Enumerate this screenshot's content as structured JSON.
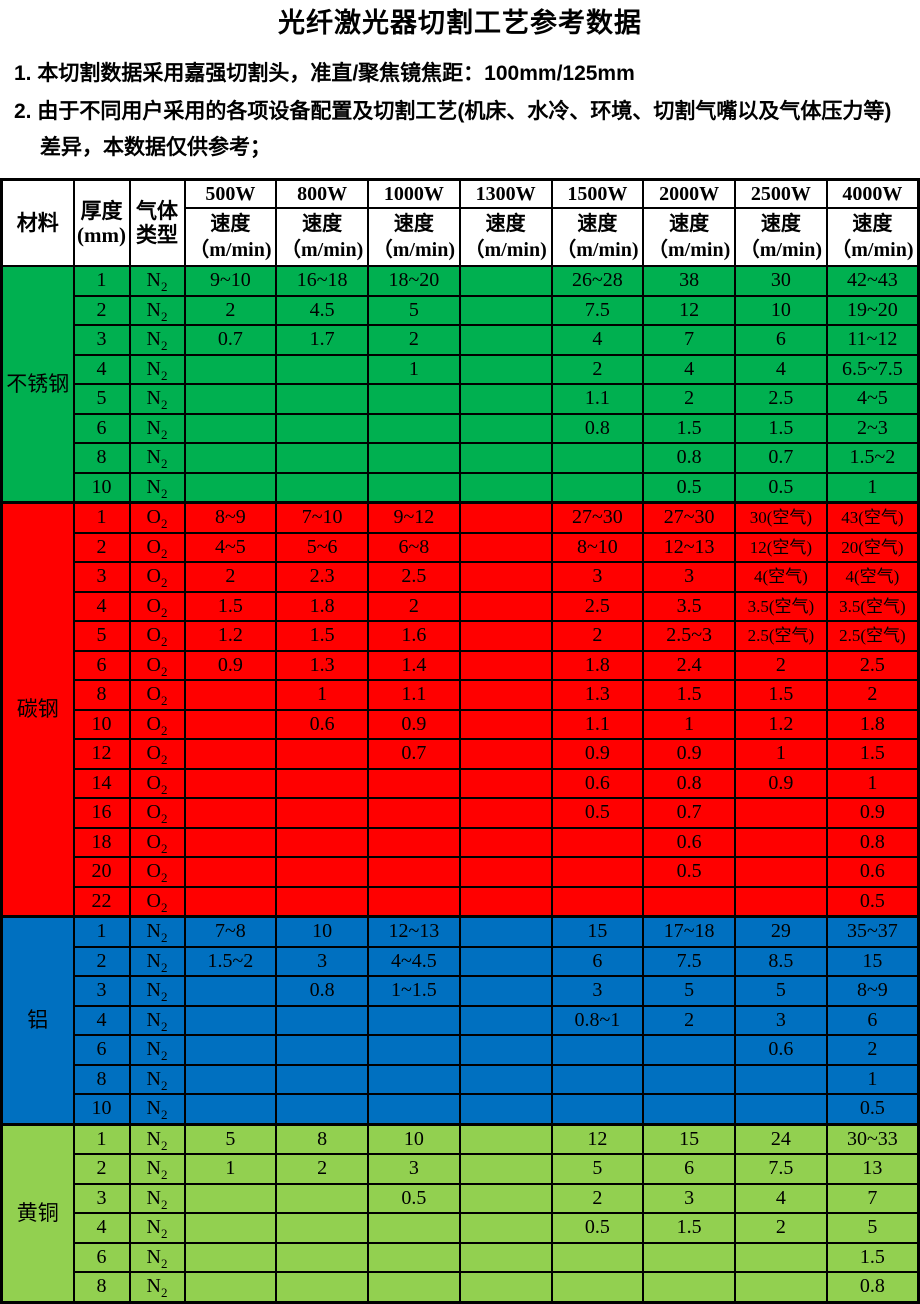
{
  "title": "光纤激光器切割工艺参考数据",
  "notes": [
    "1. 本切割数据采用嘉强切割头，准直/聚焦镜焦距：100mm/125mm",
    "2. 由于不同用户采用的各项设备配置及切割工艺(机床、水冷、环境、切割气嘴以及气体压力等)差异，本数据仅供参考；"
  ],
  "table": {
    "header": {
      "material": "材料",
      "thickness_line1": "厚度",
      "thickness_line2": "(mm)",
      "gas_line1": "气体",
      "gas_line2": "类型",
      "powers": [
        "500W",
        "800W",
        "1000W",
        "1300W",
        "1500W",
        "2000W",
        "2500W",
        "4000W"
      ],
      "speed_label": "速度",
      "speed_unit": "（m/min)"
    },
    "colors": {
      "stainless": "#00B050",
      "carbon": "#FF0000",
      "aluminum": "#0070C0",
      "brass": "#92D050"
    },
    "sections": [
      {
        "material": "不锈钢",
        "color_key": "stainless",
        "rows": [
          {
            "thickness": "1",
            "gas": "N2",
            "speeds": [
              "9~10",
              "16~18",
              "18~20",
              "",
              "26~28",
              "38",
              "30",
              "42~43"
            ]
          },
          {
            "thickness": "2",
            "gas": "N2",
            "speeds": [
              "2",
              "4.5",
              "5",
              "",
              "7.5",
              "12",
              "10",
              "19~20"
            ]
          },
          {
            "thickness": "3",
            "gas": "N2",
            "speeds": [
              "0.7",
              "1.7",
              "2",
              "",
              "4",
              "7",
              "6",
              "11~12"
            ]
          },
          {
            "thickness": "4",
            "gas": "N2",
            "speeds": [
              "",
              "",
              "1",
              "",
              "2",
              "4",
              "4",
              "6.5~7.5"
            ]
          },
          {
            "thickness": "5",
            "gas": "N2",
            "speeds": [
              "",
              "",
              "",
              "",
              "1.1",
              "2",
              "2.5",
              "4~5"
            ]
          },
          {
            "thickness": "6",
            "gas": "N2",
            "speeds": [
              "",
              "",
              "",
              "",
              "0.8",
              "1.5",
              "1.5",
              "2~3"
            ]
          },
          {
            "thickness": "8",
            "gas": "N2",
            "speeds": [
              "",
              "",
              "",
              "",
              "",
              "0.8",
              "0.7",
              "1.5~2"
            ]
          },
          {
            "thickness": "10",
            "gas": "N2",
            "speeds": [
              "",
              "",
              "",
              "",
              "",
              "0.5",
              "0.5",
              "1"
            ]
          }
        ]
      },
      {
        "material": "碳钢",
        "color_key": "carbon",
        "rows": [
          {
            "thickness": "1",
            "gas": "O2",
            "speeds": [
              "8~9",
              "7~10",
              "9~12",
              "",
              "27~30",
              "27~30",
              "30(空气)",
              "43(空气)"
            ]
          },
          {
            "thickness": "2",
            "gas": "O2",
            "speeds": [
              "4~5",
              "5~6",
              "6~8",
              "",
              "8~10",
              "12~13",
              "12(空气)",
              "20(空气)"
            ]
          },
          {
            "thickness": "3",
            "gas": "O2",
            "speeds": [
              "2",
              "2.3",
              "2.5",
              "",
              "3",
              "3",
              "4(空气)",
              "4(空气)"
            ]
          },
          {
            "thickness": "4",
            "gas": "O2",
            "speeds": [
              "1.5",
              "1.8",
              "2",
              "",
              "2.5",
              "3.5",
              "3.5(空气)",
              "3.5(空气)"
            ]
          },
          {
            "thickness": "5",
            "gas": "O2",
            "speeds": [
              "1.2",
              "1.5",
              "1.6",
              "",
              "2",
              "2.5~3",
              "2.5(空气)",
              "2.5(空气)"
            ]
          },
          {
            "thickness": "6",
            "gas": "O2",
            "speeds": [
              "0.9",
              "1.3",
              "1.4",
              "",
              "1.8",
              "2.4",
              "2",
              "2.5"
            ]
          },
          {
            "thickness": "8",
            "gas": "O2",
            "speeds": [
              "",
              "1",
              "1.1",
              "",
              "1.3",
              "1.5",
              "1.5",
              "2"
            ]
          },
          {
            "thickness": "10",
            "gas": "O2",
            "speeds": [
              "",
              "0.6",
              "0.9",
              "",
              "1.1",
              "1",
              "1.2",
              "1.8"
            ]
          },
          {
            "thickness": "12",
            "gas": "O2",
            "speeds": [
              "",
              "",
              "0.7",
              "",
              "0.9",
              "0.9",
              "1",
              "1.5"
            ]
          },
          {
            "thickness": "14",
            "gas": "O2",
            "speeds": [
              "",
              "",
              "",
              "",
              "0.6",
              "0.8",
              "0.9",
              "1"
            ]
          },
          {
            "thickness": "16",
            "gas": "O2",
            "speeds": [
              "",
              "",
              "",
              "",
              "0.5",
              "0.7",
              "",
              "0.9"
            ]
          },
          {
            "thickness": "18",
            "gas": "O2",
            "speeds": [
              "",
              "",
              "",
              "",
              "",
              "0.6",
              "",
              "0.8"
            ]
          },
          {
            "thickness": "20",
            "gas": "O2",
            "speeds": [
              "",
              "",
              "",
              "",
              "",
              "0.5",
              "",
              "0.6"
            ]
          },
          {
            "thickness": "22",
            "gas": "O2",
            "speeds": [
              "",
              "",
              "",
              "",
              "",
              "",
              "",
              "0.5"
            ]
          }
        ]
      },
      {
        "material": "铝",
        "color_key": "aluminum",
        "rows": [
          {
            "thickness": "1",
            "gas": "N2",
            "speeds": [
              "7~8",
              "10",
              "12~13",
              "",
              "15",
              "17~18",
              "29",
              "35~37"
            ]
          },
          {
            "thickness": "2",
            "gas": "N2",
            "speeds": [
              "1.5~2",
              "3",
              "4~4.5",
              "",
              "6",
              "7.5",
              "8.5",
              "15"
            ]
          },
          {
            "thickness": "3",
            "gas": "N2",
            "speeds": [
              "",
              "0.8",
              "1~1.5",
              "",
              "3",
              "5",
              "5",
              "8~9"
            ]
          },
          {
            "thickness": "4",
            "gas": "N2",
            "speeds": [
              "",
              "",
              "",
              "",
              "0.8~1",
              "2",
              "3",
              "6"
            ]
          },
          {
            "thickness": "6",
            "gas": "N2",
            "speeds": [
              "",
              "",
              "",
              "",
              "",
              "",
              "0.6",
              "2"
            ]
          },
          {
            "thickness": "8",
            "gas": "N2",
            "speeds": [
              "",
              "",
              "",
              "",
              "",
              "",
              "",
              "1"
            ]
          },
          {
            "thickness": "10",
            "gas": "N2",
            "speeds": [
              "",
              "",
              "",
              "",
              "",
              "",
              "",
              "0.5"
            ]
          }
        ]
      },
      {
        "material": "黄铜",
        "color_key": "brass",
        "rows": [
          {
            "thickness": "1",
            "gas": "N2",
            "speeds": [
              "5",
              "8",
              "10",
              "",
              "12",
              "15",
              "24",
              "30~33"
            ]
          },
          {
            "thickness": "2",
            "gas": "N2",
            "speeds": [
              "1",
              "2",
              "3",
              "",
              "5",
              "6",
              "7.5",
              "13"
            ]
          },
          {
            "thickness": "3",
            "gas": "N2",
            "speeds": [
              "",
              "",
              "0.5",
              "",
              "2",
              "3",
              "4",
              "7"
            ]
          },
          {
            "thickness": "4",
            "gas": "N2",
            "speeds": [
              "",
              "",
              "",
              "",
              "0.5",
              "1.5",
              "2",
              "5"
            ]
          },
          {
            "thickness": "6",
            "gas": "N2",
            "speeds": [
              "",
              "",
              "",
              "",
              "",
              "",
              "",
              "1.5"
            ]
          },
          {
            "thickness": "8",
            "gas": "N2",
            "speeds": [
              "",
              "",
              "",
              "",
              "",
              "",
              "",
              "0.8"
            ]
          }
        ]
      }
    ]
  }
}
